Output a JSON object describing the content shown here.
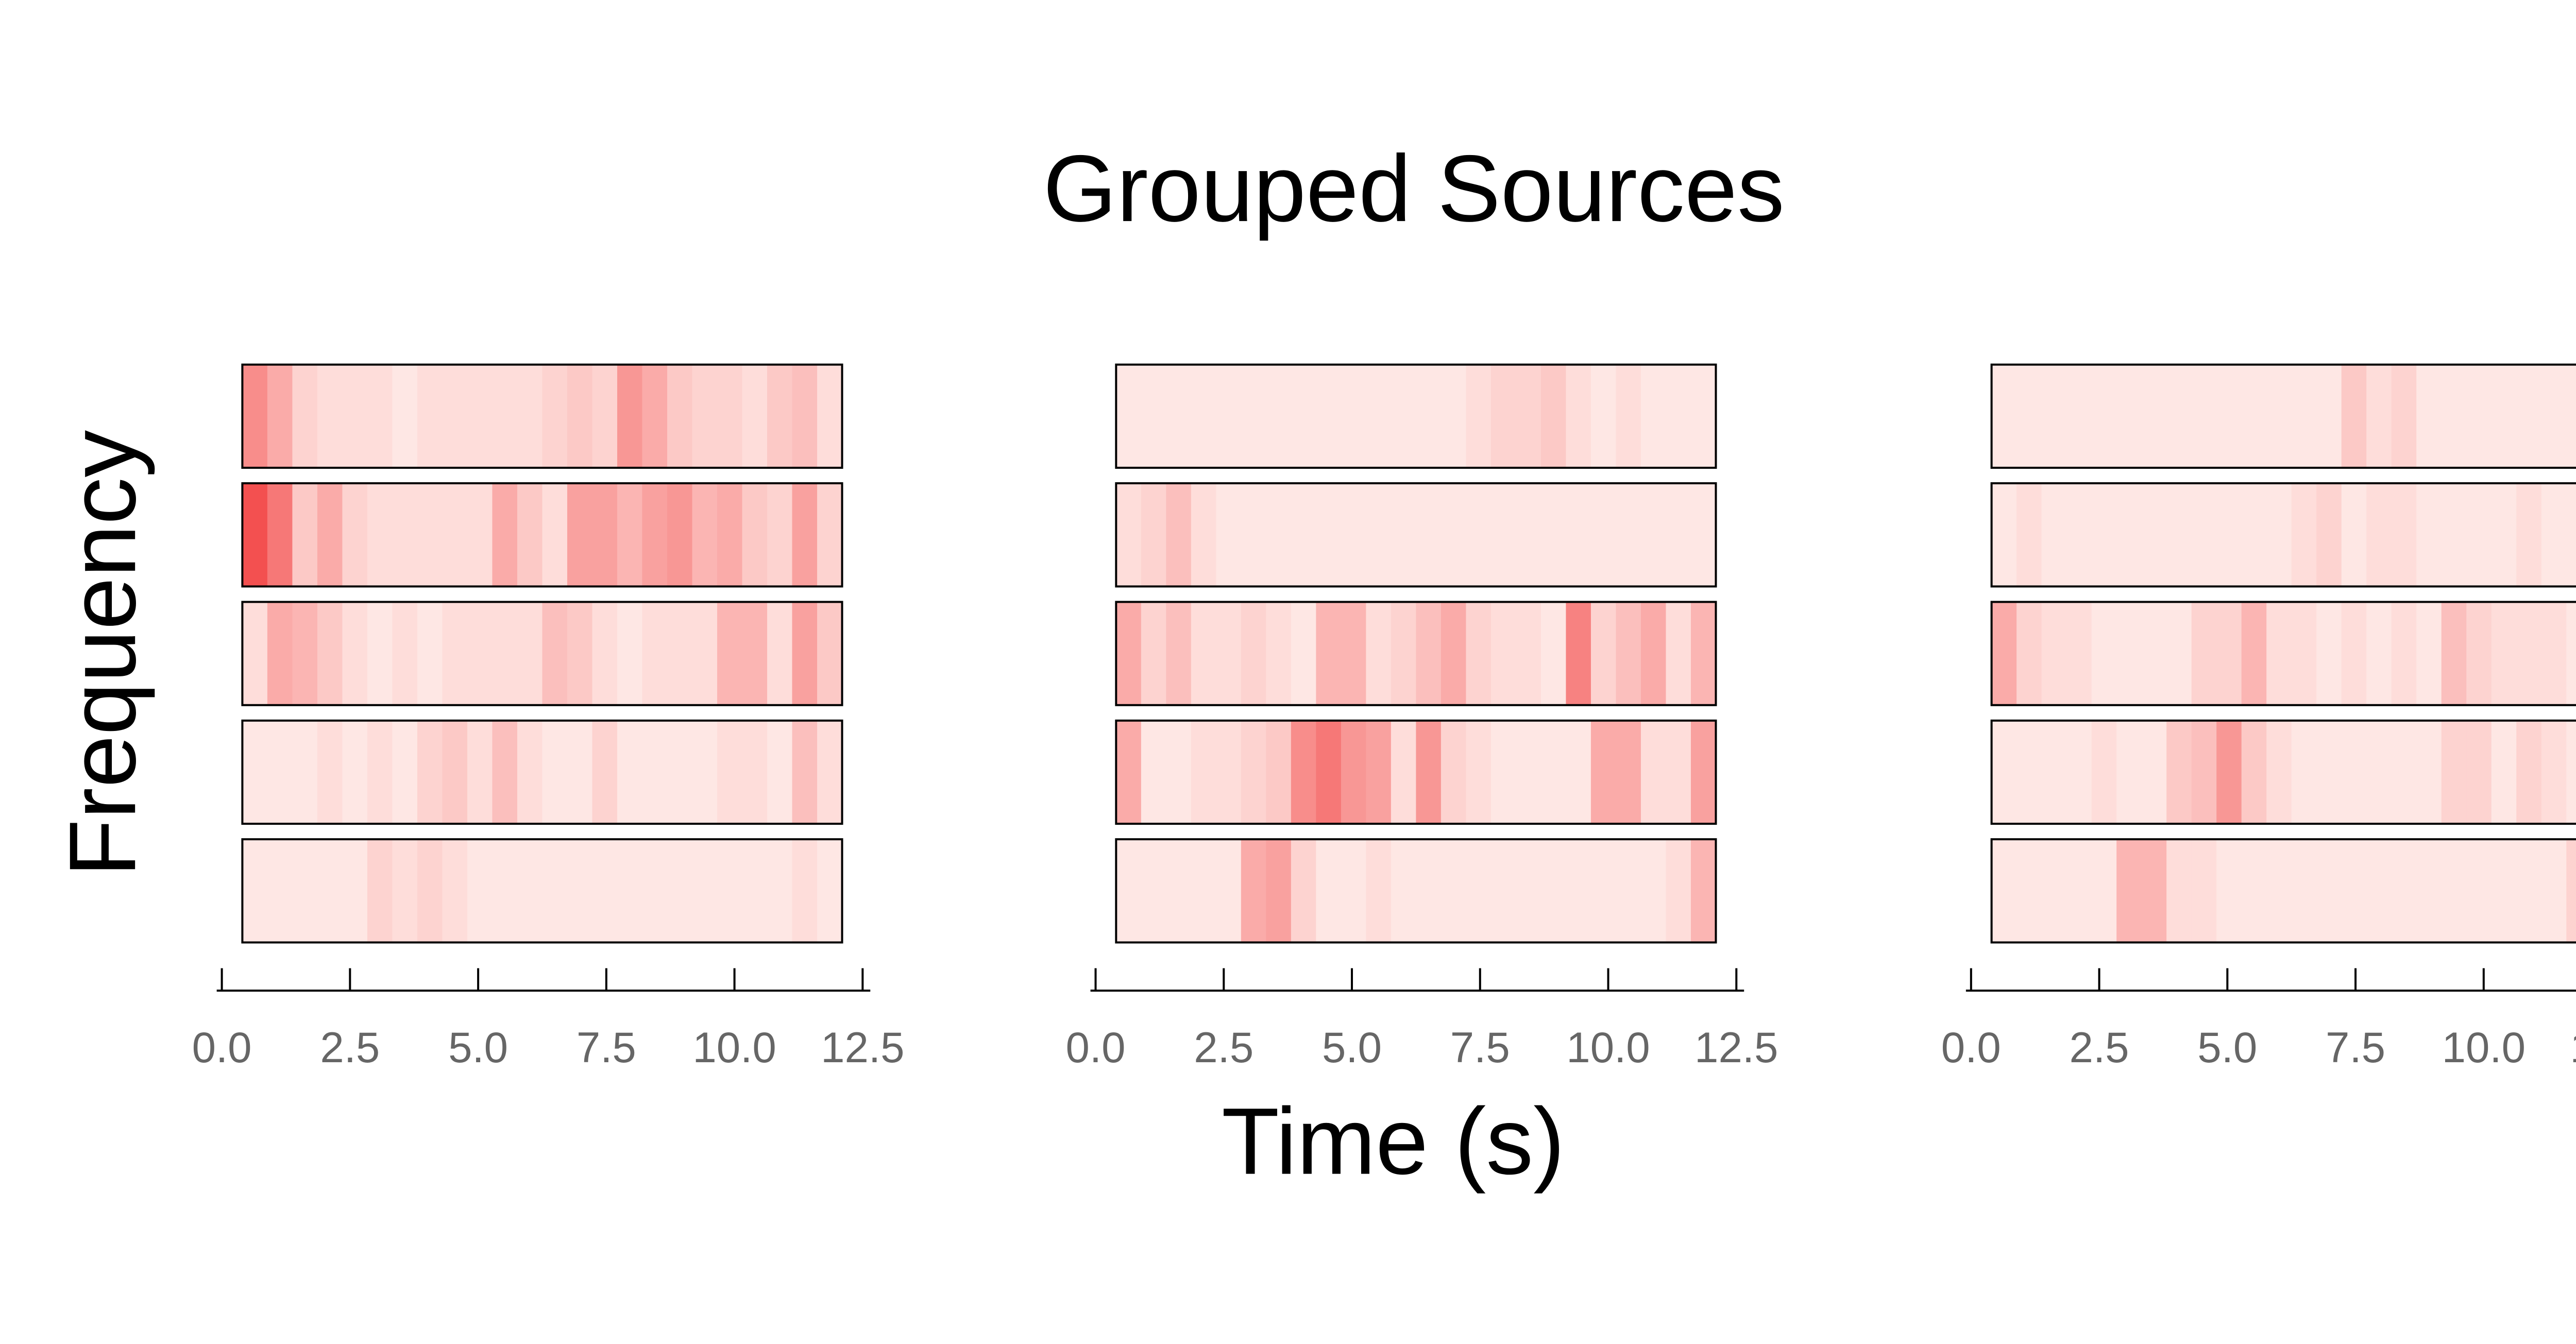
{
  "chart_data": {
    "type": "heatmap",
    "title": "Grouped Sources",
    "xlabel": "Time (s)",
    "ylabel": "Frequency",
    "xlim": [
      -0.1,
      12.65
    ],
    "xticks": [
      {
        "value": 0,
        "label": "0.0"
      },
      2.5,
      {
        "value": 5,
        "label": "5.0"
      },
      7.5,
      {
        "value": 10,
        "label": "10.0"
      },
      12.5
    ],
    "extent": [
      0.4,
      12.1
    ],
    "colormap": [
      "#fff1ee",
      "#f02828"
    ],
    "vlim": [
      0,
      1
    ],
    "panels": [
      [
        [
          0.5,
          0.35,
          0.15,
          0.1,
          0.1,
          0.1,
          0.05,
          0.1,
          0.1,
          0.1,
          0.1,
          0.1,
          0.15,
          0.2,
          0.15,
          0.45,
          0.35,
          0.2,
          0.15,
          0.15,
          0.1,
          0.2,
          0.25,
          0.1
        ],
        [
          0.8,
          0.6,
          0.2,
          0.35,
          0.15,
          0.1,
          0.1,
          0.1,
          0.1,
          0.1,
          0.35,
          0.2,
          0.1,
          0.4,
          0.4,
          0.3,
          0.4,
          0.45,
          0.3,
          0.35,
          0.2,
          0.15,
          0.4,
          0.15
        ],
        [
          0.1,
          0.35,
          0.3,
          0.2,
          0.1,
          0.05,
          0.1,
          0.05,
          0.1,
          0.1,
          0.1,
          0.1,
          0.25,
          0.2,
          0.1,
          0.05,
          0.1,
          0.1,
          0.1,
          0.3,
          0.3,
          0.1,
          0.4,
          0.2
        ],
        [
          0.05,
          0.05,
          0.05,
          0.1,
          0.05,
          0.1,
          0.05,
          0.15,
          0.2,
          0.1,
          0.25,
          0.1,
          0.05,
          0.05,
          0.15,
          0.05,
          0.05,
          0.05,
          0.05,
          0.1,
          0.1,
          0.05,
          0.25,
          0.1
        ],
        [
          0.05,
          0.05,
          0.05,
          0.05,
          0.05,
          0.15,
          0.1,
          0.15,
          0.1,
          0.05,
          0.05,
          0.05,
          0.05,
          0.05,
          0.05,
          0.05,
          0.05,
          0.05,
          0.05,
          0.05,
          0.05,
          0.05,
          0.1,
          0.05
        ]
      ],
      [
        [
          0.05,
          0.05,
          0.05,
          0.05,
          0.05,
          0.05,
          0.05,
          0.05,
          0.05,
          0.05,
          0.05,
          0.05,
          0.05,
          0.05,
          0.1,
          0.15,
          0.15,
          0.2,
          0.1,
          0.05,
          0.1,
          0.05,
          0.05,
          0.05
        ],
        [
          0.1,
          0.15,
          0.25,
          0.1,
          0.05,
          0.05,
          0.05,
          0.05,
          0.05,
          0.05,
          0.05,
          0.05,
          0.05,
          0.05,
          0.05,
          0.05,
          0.05,
          0.05,
          0.05,
          0.05,
          0.05,
          0.05,
          0.05,
          0.05
        ],
        [
          0.35,
          0.15,
          0.25,
          0.1,
          0.1,
          0.15,
          0.1,
          0.05,
          0.3,
          0.3,
          0.1,
          0.15,
          0.25,
          0.35,
          0.15,
          0.1,
          0.1,
          0.05,
          0.55,
          0.15,
          0.25,
          0.35,
          0.1,
          0.3
        ],
        [
          0.35,
          0.05,
          0.05,
          0.1,
          0.1,
          0.15,
          0.2,
          0.5,
          0.6,
          0.45,
          0.4,
          0.1,
          0.45,
          0.15,
          0.1,
          0.05,
          0.05,
          0.05,
          0.05,
          0.35,
          0.35,
          0.1,
          0.1,
          0.4
        ],
        [
          0.05,
          0.05,
          0.05,
          0.05,
          0.05,
          0.35,
          0.4,
          0.15,
          0.05,
          0.05,
          0.1,
          0.05,
          0.05,
          0.05,
          0.05,
          0.05,
          0.05,
          0.05,
          0.05,
          0.05,
          0.05,
          0.05,
          0.1,
          0.3
        ]
      ],
      [
        [
          0.05,
          0.05,
          0.05,
          0.05,
          0.05,
          0.05,
          0.05,
          0.05,
          0.05,
          0.05,
          0.05,
          0.05,
          0.05,
          0.05,
          0.2,
          0.1,
          0.15,
          0.05,
          0.05,
          0.05,
          0.05,
          0.05,
          0.05,
          0.05
        ],
        [
          0.05,
          0.1,
          0.05,
          0.05,
          0.05,
          0.05,
          0.05,
          0.05,
          0.05,
          0.05,
          0.05,
          0.05,
          0.1,
          0.15,
          0.05,
          0.1,
          0.1,
          0.05,
          0.05,
          0.05,
          0.05,
          0.1,
          0.05,
          0.05
        ],
        [
          0.35,
          0.15,
          0.1,
          0.1,
          0.05,
          0.05,
          0.05,
          0.05,
          0.15,
          0.15,
          0.3,
          0.1,
          0.1,
          0.05,
          0.1,
          0.05,
          0.1,
          0.05,
          0.25,
          0.15,
          0.1,
          0.1,
          0.1,
          0.05
        ],
        [
          0.05,
          0.05,
          0.05,
          0.05,
          0.1,
          0.05,
          0.05,
          0.2,
          0.25,
          0.45,
          0.2,
          0.1,
          0.05,
          0.05,
          0.05,
          0.05,
          0.05,
          0.05,
          0.15,
          0.15,
          0.05,
          0.15,
          0.1,
          0.05
        ],
        [
          0.05,
          0.05,
          0.05,
          0.05,
          0.05,
          0.3,
          0.3,
          0.1,
          0.1,
          0.05,
          0.05,
          0.05,
          0.05,
          0.05,
          0.05,
          0.05,
          0.05,
          0.05,
          0.05,
          0.05,
          0.05,
          0.05,
          0.05,
          0.15
        ]
      ]
    ]
  }
}
